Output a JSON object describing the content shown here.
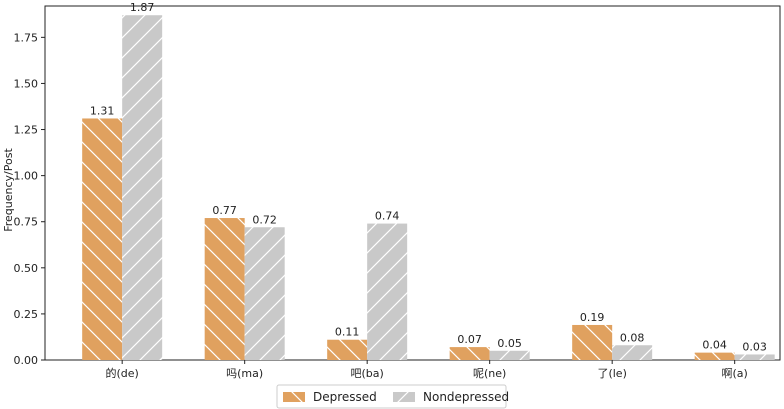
{
  "chart_data": {
    "type": "bar",
    "categories": [
      "的(de)",
      "吗(ma)",
      "吧(ba)",
      "呢(ne)",
      "了(le)",
      "啊(a)"
    ],
    "series": [
      {
        "name": "Depressed",
        "values": [
          1.31,
          0.77,
          0.11,
          0.07,
          0.19,
          0.04
        ],
        "color": "#E0A15F"
      },
      {
        "name": "Nondepressed",
        "values": [
          1.87,
          0.72,
          0.74,
          0.05,
          0.08,
          0.03
        ],
        "color": "#C9C9C9"
      }
    ],
    "value_labels": {
      "Depressed": [
        "1.31",
        "0.77",
        "0.11",
        "0.07",
        "0.19",
        "0.04"
      ],
      "Nondepressed": [
        "1.87",
        "0.72",
        "0.74",
        "0.05",
        "0.08",
        "0.03"
      ]
    },
    "title": "",
    "xlabel": "",
    "ylabel": "Frequency/Post",
    "ylim": [
      0,
      1.92
    ],
    "yticks": [
      0.0,
      0.25,
      0.5,
      0.75,
      1.0,
      1.25,
      1.5,
      1.75
    ],
    "ytick_labels": [
      "0.00",
      "0.25",
      "0.50",
      "0.75",
      "1.00",
      "1.25",
      "1.50",
      "1.75"
    ],
    "hatch": "diagonal",
    "grid": false,
    "legend_position": "bottom-center"
  }
}
